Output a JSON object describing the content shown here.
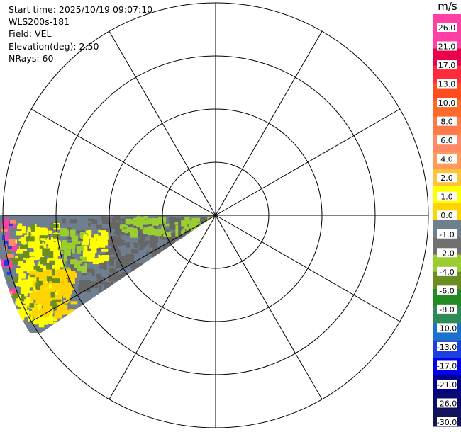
{
  "info": {
    "start_time": "Start time: 2025/10/19 09:07:10",
    "instrument": "WLS200s-181",
    "field": "Field: VEL",
    "elevation": "Elevation(deg): 2.50",
    "nrays": "NRays: 60"
  },
  "colorbar": {
    "unit": "m/s",
    "labels": [
      "26.0",
      "21.0",
      "17.0",
      "13.0",
      "10.0",
      "8.0",
      "6.0",
      "4.0",
      "2.0",
      "1.0",
      "0.0",
      "-1.0",
      "-2.0",
      "-4.0",
      "-6.0",
      "-8.0",
      "-10.0",
      "-13.0",
      "-17.0",
      "-21.0",
      "-26.0",
      "-30.0"
    ],
    "colors": [
      "#ff3fa3",
      "#ff3fa3",
      "#e8004a",
      "#ff2b3a",
      "#ff4d1f",
      "#ff6a2a",
      "#ff7a4a",
      "#ff8a66",
      "#ff9a5a",
      "#ffc23a",
      "#ffff00",
      "#ffd400",
      "#6e7f8e",
      "#707070",
      "#9acd32",
      "#6b8e23",
      "#228b22",
      "#2e8b57",
      "#1e70cd",
      "#1c3fe0",
      "#0000ee",
      "#00008b",
      "#0a0a70",
      "#14145a"
    ]
  },
  "chart_data": {
    "type": "heatmap",
    "subtype": "ppi-polar",
    "field": "VEL",
    "elevation_deg": 2.5,
    "nrays": 60,
    "scan_azimuth_range_deg": [
      236,
      270
    ],
    "range_rings": 4,
    "radial_lines_every_deg": 30,
    "dominant_values_ms": {
      "near_zero": 0.0,
      "negative_band": -1.0,
      "positive_patches": 2.0
    },
    "colorbar_range_ms": [
      -30.0,
      26.0
    ]
  }
}
